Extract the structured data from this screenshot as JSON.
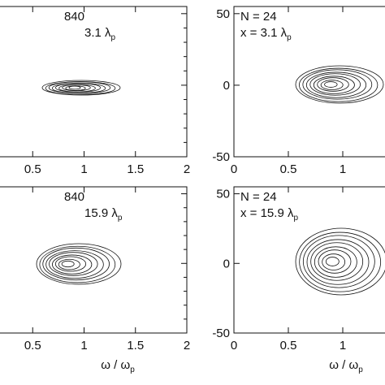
{
  "chart_data": [
    {
      "type": "contour",
      "xlim": [
        0,
        2
      ],
      "xticks": [
        0.5,
        1,
        1.5,
        2
      ],
      "ylim": [
        -50,
        55
      ],
      "annotations": [
        {
          "text": "840"
        },
        {
          "text": "3.1 λ",
          "sub": "p"
        }
      ]
    },
    {
      "type": "contour",
      "xlim": [
        0,
        1.5
      ],
      "xticks": [
        0,
        0.5,
        1
      ],
      "ylim": [
        -50,
        55
      ],
      "yticks": [
        -50,
        0,
        50
      ],
      "annotations": [
        {
          "text": "N = 24"
        },
        {
          "text": "x = 3.1 λ",
          "sub": "p"
        }
      ]
    },
    {
      "type": "contour",
      "xlim": [
        0,
        2
      ],
      "xticks": [
        0.5,
        1,
        1.5,
        2
      ],
      "ylim": [
        -50,
        55
      ],
      "annotations": [
        {
          "text": "840"
        },
        {
          "text": "15.9 λ",
          "sub": "p"
        }
      ],
      "xlabel": {
        "text": "ω / ω",
        "sub": "p"
      }
    },
    {
      "type": "contour",
      "xlim": [
        0,
        1.5
      ],
      "xticks": [
        0,
        0.5,
        1
      ],
      "ylim": [
        -50,
        55
      ],
      "yticks": [
        -50,
        0,
        50
      ],
      "annotations": [
        {
          "text": "N = 24"
        },
        {
          "text": "x = 15.9 λ",
          "sub": "p"
        }
      ],
      "xlabel": {
        "text": "ω / ω",
        "sub": "p"
      }
    }
  ]
}
